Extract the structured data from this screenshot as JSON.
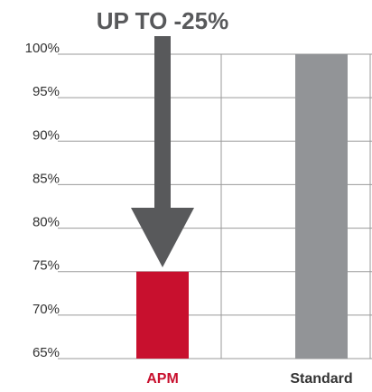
{
  "chart_data": {
    "type": "bar",
    "title": "UP TO -25%",
    "categories": [
      "APM",
      "Standard"
    ],
    "values": [
      75,
      100
    ],
    "colors": [
      "#c8102e",
      "#929497"
    ],
    "label_colors": [
      "#c8102e",
      "#333333"
    ],
    "ylim": [
      65,
      100
    ],
    "yticks": [
      {
        "value": 65,
        "label": "65%"
      },
      {
        "value": 70,
        "label": "70%"
      },
      {
        "value": 75,
        "label": "75%"
      },
      {
        "value": 80,
        "label": "80%"
      },
      {
        "value": 85,
        "label": "85%"
      },
      {
        "value": 90,
        "label": "90%"
      },
      {
        "value": 95,
        "label": "95%"
      },
      {
        "value": 100,
        "label": "100%"
      }
    ],
    "grid": true
  }
}
